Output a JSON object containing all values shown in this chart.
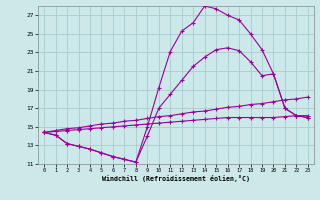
{
  "background_color": "#cde8e8",
  "grid_color": "#aacccc",
  "line_color": "#990099",
  "xlabel": "Windchill (Refroidissement éolien,°C)",
  "xlim": [
    -0.5,
    23.5
  ],
  "ylim": [
    11,
    28
  ],
  "xticks": [
    0,
    1,
    2,
    3,
    4,
    5,
    6,
    7,
    8,
    9,
    10,
    11,
    12,
    13,
    14,
    15,
    16,
    17,
    18,
    19,
    20,
    21,
    22,
    23
  ],
  "yticks": [
    11,
    13,
    15,
    17,
    19,
    21,
    23,
    25,
    27
  ],
  "curve1_x": [
    0,
    1,
    2,
    3,
    4,
    5,
    6,
    7,
    8,
    9,
    10,
    11,
    12,
    13,
    14,
    15,
    16,
    17,
    18,
    19,
    20,
    21,
    22,
    23
  ],
  "curve1_y": [
    14.4,
    14.1,
    13.2,
    12.9,
    12.6,
    12.2,
    11.8,
    11.5,
    11.2,
    15.0,
    19.2,
    23.1,
    25.3,
    26.2,
    28.0,
    27.7,
    27.0,
    26.5,
    25.0,
    23.3,
    20.7,
    17.0,
    16.2,
    16.0
  ],
  "curve2_x": [
    0,
    1,
    2,
    3,
    4,
    5,
    6,
    7,
    8,
    9,
    10,
    11,
    12,
    13,
    14,
    15,
    16,
    17,
    18,
    19,
    20,
    21,
    22,
    23
  ],
  "curve2_y": [
    14.4,
    14.1,
    13.2,
    12.9,
    12.6,
    12.2,
    11.8,
    11.5,
    11.2,
    14.0,
    17.0,
    18.5,
    20.0,
    21.5,
    22.5,
    23.3,
    23.5,
    23.2,
    22.0,
    20.5,
    20.7,
    17.0,
    16.2,
    16.0
  ],
  "line3_x": [
    0,
    1,
    2,
    3,
    4,
    5,
    6,
    7,
    8,
    9,
    10,
    11,
    12,
    13,
    14,
    15,
    16,
    17,
    18,
    19,
    20,
    21,
    22,
    23
  ],
  "line3_y": [
    14.4,
    14.6,
    14.8,
    14.9,
    15.1,
    15.3,
    15.4,
    15.6,
    15.7,
    15.9,
    16.1,
    16.2,
    16.4,
    16.6,
    16.7,
    16.9,
    17.1,
    17.2,
    17.4,
    17.5,
    17.7,
    17.9,
    18.0,
    18.2
  ],
  "line4_x": [
    0,
    1,
    2,
    3,
    4,
    5,
    6,
    7,
    8,
    9,
    10,
    11,
    12,
    13,
    14,
    15,
    16,
    17,
    18,
    19,
    20,
    21,
    22,
    23
  ],
  "line4_y": [
    14.4,
    14.5,
    14.6,
    14.7,
    14.8,
    14.9,
    15.0,
    15.1,
    15.2,
    15.3,
    15.4,
    15.5,
    15.6,
    15.7,
    15.8,
    15.9,
    16.0,
    16.0,
    16.0,
    16.0,
    16.0,
    16.1,
    16.2,
    16.2
  ]
}
